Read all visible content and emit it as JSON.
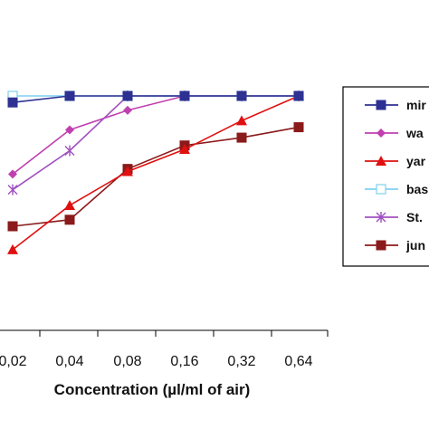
{
  "chart_data": {
    "type": "line",
    "xlabel": "Concentration (µl/ml of air)",
    "ylabel": "",
    "categories": [
      "0,02",
      "0,04",
      "0,08",
      "0,16",
      "0,32",
      "0,64"
    ],
    "y_range": [
      0,
      100
    ],
    "grid": false,
    "legend_position": "right",
    "series": [
      {
        "name": "mir",
        "color": "#2e3192",
        "marker": "square-filled",
        "values": [
          95,
          100,
          100,
          100,
          100,
          100
        ]
      },
      {
        "name": "wa",
        "color": "#c040b0",
        "marker": "diamond-filled",
        "values": [
          40,
          74,
          89,
          100,
          100,
          100
        ]
      },
      {
        "name": "yar",
        "color": "#e01010",
        "marker": "triangle-filled",
        "values": [
          -18,
          16,
          42,
          59,
          81,
          100
        ]
      },
      {
        "name": "bas",
        "color": "#7fd0f0",
        "marker": "square-open",
        "values": [
          100,
          100,
          100,
          100,
          100,
          100
        ]
      },
      {
        "name": "St.",
        "color": "#a050c0",
        "marker": "star",
        "values": [
          28,
          58,
          100,
          100,
          100,
          100
        ]
      },
      {
        "name": "jun",
        "color": "#8b1a1a",
        "marker": "square-filled",
        "values": [
          0,
          5,
          44,
          62,
          68,
          76
        ]
      }
    ]
  }
}
